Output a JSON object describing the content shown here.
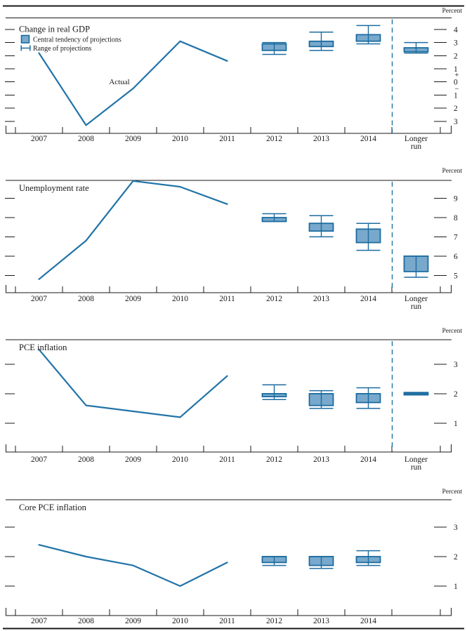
{
  "colors": {
    "accent_blue": "#2173A8",
    "box_fill": "#78A9CC",
    "box_stroke": "#1C6CA0",
    "axis": "#1A1A1A",
    "text": "#1A1A1A"
  },
  "legend": {
    "central_tendency": "Central tendency of projections",
    "range": "Range of projections"
  },
  "chart_data": [
    {
      "id": "gdp",
      "type": "line+box",
      "title": "Change in real GDP",
      "unit_label": "Percent",
      "actual": {
        "label": "Actual",
        "years": [
          "2007",
          "2008",
          "2009",
          "2010",
          "2011"
        ],
        "values": [
          2.2,
          -3.3,
          -0.5,
          3.1,
          1.6
        ]
      },
      "projections": {
        "categories": [
          "2012",
          "2013",
          "2014",
          "Longer run"
        ],
        "central_tendency": [
          [
            2.4,
            2.9
          ],
          [
            2.7,
            3.1
          ],
          [
            3.1,
            3.6
          ],
          [
            2.3,
            2.6
          ]
        ],
        "range": [
          [
            2.1,
            3.0
          ],
          [
            2.4,
            3.8
          ],
          [
            2.9,
            4.3
          ],
          [
            2.2,
            3.0
          ]
        ]
      },
      "yticks": [
        4,
        3,
        2,
        1,
        0,
        -1,
        -2,
        -3
      ],
      "ytick_labels": [
        "4",
        "3",
        "2",
        "1",
        "0",
        "1",
        "2",
        "3"
      ],
      "sign_labels": {
        "plus": "+",
        "minus": "−"
      },
      "ylim": [
        -3.92,
        4.88
      ],
      "x_year_labels": [
        "2007",
        "2008",
        "2009",
        "2010",
        "2011",
        "2012",
        "2013",
        "2014"
      ],
      "longer_run_label": [
        "Longer",
        "run"
      ],
      "has_longer_run": true
    },
    {
      "id": "unemployment",
      "type": "line+box",
      "title": "Unemployment rate",
      "unit_label": "Percent",
      "actual": {
        "years": [
          "2007",
          "2008",
          "2009",
          "2010",
          "2011"
        ],
        "values": [
          4.8,
          6.8,
          9.9,
          9.6,
          8.7
        ]
      },
      "projections": {
        "categories": [
          "2012",
          "2013",
          "2014",
          "Longer run"
        ],
        "central_tendency": [
          [
            7.8,
            8.0
          ],
          [
            7.3,
            7.7
          ],
          [
            6.7,
            7.4
          ],
          [
            5.2,
            6.0
          ]
        ],
        "range": [
          [
            7.8,
            8.2
          ],
          [
            7.0,
            8.1
          ],
          [
            6.3,
            7.7
          ],
          [
            4.9,
            6.0
          ]
        ]
      },
      "yticks": [
        9,
        8,
        7,
        6,
        5
      ],
      "ytick_labels": [
        "9",
        "8",
        "7",
        "6",
        "5"
      ],
      "ylim": [
        4.1,
        9.93
      ],
      "x_year_labels": [
        "2007",
        "2008",
        "2009",
        "2010",
        "2011",
        "2012",
        "2013",
        "2014"
      ],
      "longer_run_label": [
        "Longer",
        "run"
      ],
      "has_longer_run": true
    },
    {
      "id": "pce-inflation",
      "type": "line+box",
      "title": "PCE inflation",
      "unit_label": "Percent",
      "actual": {
        "years": [
          "2007",
          "2008",
          "2009",
          "2010",
          "2011"
        ],
        "values": [
          3.5,
          1.6,
          1.4,
          1.2,
          2.6
        ]
      },
      "projections": {
        "categories": [
          "2012",
          "2013",
          "2014",
          "Longer run"
        ],
        "central_tendency": [
          [
            1.9,
            2.0
          ],
          [
            1.6,
            2.0
          ],
          [
            1.7,
            2.0
          ],
          [
            2.0,
            2.0
          ]
        ],
        "range": [
          [
            1.8,
            2.3
          ],
          [
            1.5,
            2.1
          ],
          [
            1.5,
            2.2
          ],
          [
            2.0,
            2.0
          ]
        ]
      },
      "yticks": [
        3,
        2,
        1
      ],
      "ytick_labels": [
        "3",
        "2",
        "1"
      ],
      "ylim": [
        0.02,
        3.83
      ],
      "x_year_labels": [
        "2007",
        "2008",
        "2009",
        "2010",
        "2011",
        "2012",
        "2013",
        "2014"
      ],
      "longer_run_label": [
        "Longer",
        "run"
      ],
      "has_longer_run": true
    },
    {
      "id": "core-pce-inflation",
      "type": "line+box",
      "title": "Core PCE inflation",
      "unit_label": "Percent",
      "actual": {
        "years": [
          "2007",
          "2008",
          "2009",
          "2010",
          "2011"
        ],
        "values": [
          2.4,
          2.0,
          1.7,
          1.0,
          1.8
        ]
      },
      "projections": {
        "categories": [
          "2012",
          "2013",
          "2014"
        ],
        "central_tendency": [
          [
            1.8,
            2.0
          ],
          [
            1.7,
            2.0
          ],
          [
            1.8,
            2.0
          ]
        ],
        "range": [
          [
            1.7,
            2.0
          ],
          [
            1.6,
            2.0
          ],
          [
            1.7,
            2.2
          ]
        ]
      },
      "yticks": [
        3,
        2,
        1
      ],
      "ytick_labels": [
        "3",
        "2",
        "1"
      ],
      "ylim": [
        0.0,
        3.93
      ],
      "x_year_labels": [
        "2007",
        "2008",
        "2009",
        "2010",
        "2011",
        "2012",
        "2013",
        "2014"
      ],
      "has_longer_run": false
    }
  ]
}
